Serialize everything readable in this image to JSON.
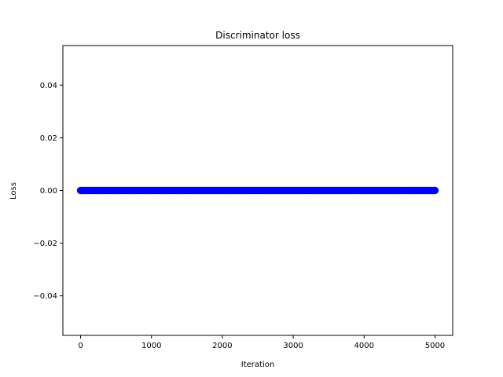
{
  "chart_data": {
    "type": "scatter",
    "title": "Discriminator loss",
    "xlabel": "Iteration",
    "ylabel": "Loss",
    "xlim": [
      -250,
      5250
    ],
    "ylim": [
      -0.055,
      0.055
    ],
    "x_ticks": [
      0,
      1000,
      2000,
      3000,
      4000,
      5000
    ],
    "x_tick_labels": [
      "0",
      "1000",
      "2000",
      "3000",
      "4000",
      "5000"
    ],
    "y_ticks": [
      -0.04,
      -0.02,
      0.0,
      0.02,
      0.04
    ],
    "y_tick_labels": [
      "−0.04",
      "−0.02",
      "0.00",
      "0.02",
      "0.04"
    ],
    "marker_color": "#0000ff",
    "grid": false,
    "series": [
      {
        "x_start": 0,
        "x_end": 5000,
        "x_step": 25,
        "y": 0.0
      }
    ]
  }
}
